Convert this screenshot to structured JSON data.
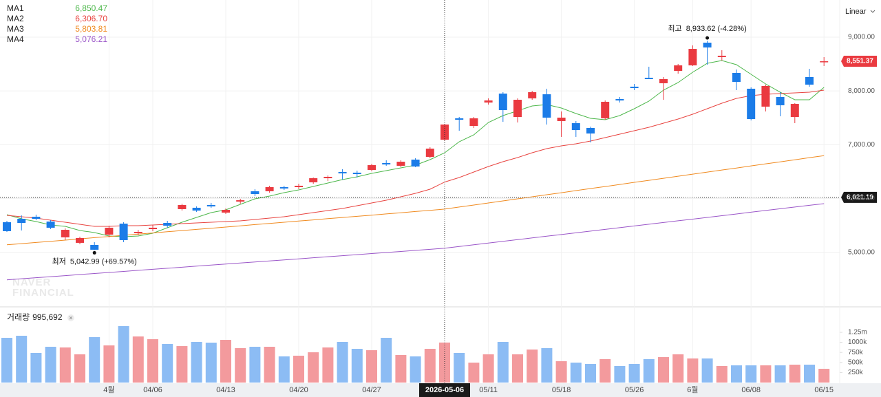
{
  "chart_data": {
    "type": "candlestick",
    "scale_label": "Linear",
    "watermark": [
      "NAVER",
      "FINANCIAL"
    ],
    "categories": [
      null,
      null,
      null,
      null,
      null,
      null,
      null,
      "4월",
      null,
      null,
      "04/06",
      null,
      null,
      null,
      null,
      "04/13",
      null,
      null,
      null,
      null,
      "04/20",
      null,
      null,
      null,
      null,
      "04/27",
      null,
      null,
      null,
      null,
      null,
      null,
      null,
      "05/11",
      null,
      null,
      null,
      null,
      "05/18",
      null,
      null,
      null,
      null,
      "05/26",
      null,
      null,
      null,
      "6월",
      null,
      null,
      null,
      "06/08",
      null,
      null,
      null,
      null,
      "06/15"
    ],
    "ohlc": {
      "open": [
        5560,
        5624,
        5662,
        5573,
        5279,
        5177,
        5138,
        5330,
        5534,
        5356,
        5432,
        5547,
        5803,
        5829,
        5880,
        5739,
        5944,
        6136,
        6136,
        6212,
        6212,
        6302,
        6378,
        6493,
        6481,
        6532,
        6660,
        6609,
        6724,
        6775,
        7094,
        7491,
        7350,
        7785,
        7951,
        7516,
        7862,
        7938,
        7440,
        7401,
        7312,
        7491,
        7849,
        8079,
        8245,
        8143,
        8373,
        8475,
        8897,
        8629,
        8335,
        8041,
        7708,
        7887,
        7516,
        8258,
        8539
      ],
      "high": [
        5586,
        5688,
        5701,
        5598,
        5445,
        5292,
        5189,
        5496,
        5560,
        5419,
        5509,
        5586,
        5905,
        5854,
        5918,
        5816,
        5995,
        6174,
        6238,
        6238,
        6276,
        6391,
        6430,
        6545,
        6519,
        6647,
        6711,
        6711,
        6749,
        6954,
        7388,
        7516,
        7516,
        7862,
        7977,
        7862,
        8002,
        8041,
        7619,
        7440,
        7337,
        7823,
        7887,
        8130,
        8450,
        8258,
        8501,
        8846,
        8933.62,
        8757,
        8399,
        8066,
        8117,
        7977,
        7772,
        8411,
        8629
      ],
      "low": [
        5381,
        5407,
        5598,
        5432,
        5228,
        5151,
        5042.99,
        5279,
        5189,
        5317,
        5394,
        5458,
        5777,
        5752,
        5829,
        5713,
        5905,
        6046,
        6110,
        6161,
        6174,
        6276,
        6327,
        6353,
        6391,
        6506,
        6609,
        6583,
        6583,
        6749,
        7082,
        7261,
        7312,
        7747,
        7427,
        7414,
        7836,
        7376,
        7146,
        7146,
        7043,
        7465,
        7785,
        8015,
        8220,
        7836,
        8322,
        8463,
        8488,
        8565,
        8015,
        7452,
        7619,
        7529,
        7401,
        8079,
        8463
      ],
      "close": [
        5394,
        5547,
        5624,
        5458,
        5419,
        5266,
        5049,
        5458,
        5228,
        5381,
        5458,
        5496,
        5880,
        5777,
        5854,
        5790,
        5969,
        6084,
        6212,
        6187,
        6238,
        6378,
        6404,
        6468,
        6455,
        6621,
        6634,
        6685,
        6596,
        6928,
        7376,
        7465,
        7491,
        7823,
        7644,
        7836,
        7977,
        7504,
        7504,
        7273,
        7209,
        7798,
        7823,
        8053,
        8220,
        8220,
        8475,
        8782,
        8808,
        8654,
        8168,
        7478,
        8092,
        7734,
        7759,
        8117,
        8551.37
      ]
    },
    "up_color": "#ea3a40",
    "down_color": "#1b7ce8",
    "ylim": [
      4000,
      9690
    ],
    "yticks": [
      {
        "value": 5000,
        "label": "5,000.00"
      },
      {
        "value": 6000,
        "label": "6,000.00"
      },
      {
        "value": 7000,
        "label": "7,000.00"
      },
      {
        "value": 8000,
        "label": "8,000.00"
      },
      {
        "value": 9000,
        "label": "9,000.00"
      }
    ],
    "grid": true,
    "moving_averages": [
      {
        "name": "MA1",
        "color": "#4cb74a",
        "legend_label": "6,850.47",
        "values": [
          5701,
          5624,
          5573,
          5509,
          5483,
          5407,
          5368,
          5304,
          5292,
          5304,
          5356,
          5458,
          5560,
          5650,
          5739,
          5790,
          5893,
          5995,
          6046,
          6110,
          6161,
          6225,
          6289,
          6353,
          6404,
          6468,
          6519,
          6570,
          6621,
          6724,
          6850.47,
          7056,
          7184,
          7414,
          7542,
          7631,
          7721,
          7747,
          7683,
          7580,
          7491,
          7465,
          7542,
          7670,
          7810,
          8015,
          8156,
          8347,
          8514,
          8565,
          8488,
          8309,
          8130,
          7977,
          7836,
          7836,
          8066
        ]
      },
      {
        "name": "MA2",
        "color": "#e8433f",
        "legend_label": "6,306.70",
        "values": [
          5688,
          5662,
          5637,
          5598,
          5560,
          5522,
          5483,
          5483,
          5496,
          5496,
          5509,
          5522,
          5534,
          5547,
          5560,
          5573,
          5586,
          5611,
          5637,
          5662,
          5701,
          5739,
          5777,
          5816,
          5867,
          5918,
          5969,
          6033,
          6097,
          6174,
          6306.7,
          6391,
          6494,
          6596,
          6685,
          6762,
          6851,
          6928,
          6979,
          7018,
          7069,
          7133,
          7197,
          7261,
          7325,
          7401,
          7478,
          7568,
          7670,
          7772,
          7862,
          7913,
          7938,
          7951,
          7964,
          7977,
          8015
        ]
      },
      {
        "name": "MA3",
        "color": "#f08a1f",
        "legend_label": "5,803.81",
        "values": [
          5140,
          5162,
          5184,
          5206,
          5228,
          5250,
          5273,
          5295,
          5317,
          5339,
          5361,
          5383,
          5405,
          5427,
          5449,
          5471,
          5494,
          5516,
          5538,
          5560,
          5582,
          5604,
          5626,
          5648,
          5670,
          5692,
          5715,
          5737,
          5759,
          5781,
          5803.81,
          5842,
          5880,
          5918,
          5956,
          5995,
          6033,
          6071,
          6109,
          6148,
          6186,
          6224,
          6262,
          6301,
          6339,
          6377,
          6415,
          6454,
          6492,
          6530,
          6568,
          6607,
          6645,
          6683,
          6721,
          6760,
          6798
        ]
      },
      {
        "name": "MA4",
        "color": "#9a55c8",
        "legend_label": "5,076.21",
        "values": [
          4490,
          4510,
          4529,
          4549,
          4568,
          4588,
          4607,
          4627,
          4646,
          4666,
          4685,
          4705,
          4724,
          4744,
          4763,
          4783,
          4802,
          4822,
          4841,
          4861,
          4880,
          4900,
          4919,
          4939,
          4958,
          4978,
          4997,
          5017,
          5037,
          5056,
          5076.21,
          5108,
          5140,
          5172,
          5204,
          5236,
          5268,
          5300,
          5331,
          5363,
          5395,
          5427,
          5459,
          5491,
          5523,
          5555,
          5587,
          5618,
          5650,
          5682,
          5714,
          5746,
          5778,
          5810,
          5842,
          5874,
          5905
        ]
      }
    ],
    "last_price": {
      "value": 8551.37,
      "label": "8,551.37"
    },
    "crosshair": {
      "date": "2026-05-06",
      "price": {
        "value": 6021.19,
        "label": "6,021.19"
      }
    },
    "annotations": {
      "high": {
        "label": "최고",
        "text": "8,933.62 (-4.28%)"
      },
      "low": {
        "label": "최저",
        "text": "5,042.99 (+69.57%)"
      }
    },
    "volume": {
      "title": "거래량",
      "current_label": "995,692",
      "up_color": "#f39a9d",
      "down_color": "#8cbcf4",
      "values": [
        1113000,
        1164000,
        736000,
        890000,
        873000,
        702000,
        1130000,
        924000,
        1404000,
        1147000,
        1079000,
        959000,
        907000,
        1010000,
        993000,
        1061000,
        856000,
        890000,
        890000,
        651000,
        668000,
        753000,
        873000,
        1010000,
        839000,
        805000,
        1113000,
        685000,
        651000,
        839000,
        995692,
        736000,
        496000,
        702000,
        1010000,
        702000,
        822000,
        856000,
        531000,
        496000,
        462000,
        582000,
        411000,
        462000,
        582000,
        633000,
        702000,
        599000,
        599000,
        411000,
        428000,
        428000,
        428000,
        428000,
        445000,
        445000,
        342000
      ],
      "ylim": [
        0,
        1866000
      ],
      "yticks": [
        {
          "value": 250000,
          "label": "250k"
        },
        {
          "value": 500000,
          "label": "500k"
        },
        {
          "value": 750000,
          "label": "750k"
        },
        {
          "value": 1000000,
          "label": "1000k"
        },
        {
          "value": 1250000,
          "label": "1.25m"
        }
      ]
    }
  }
}
